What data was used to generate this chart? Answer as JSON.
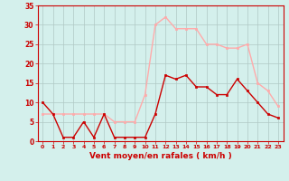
{
  "x": [
    0,
    1,
    2,
    3,
    4,
    5,
    6,
    7,
    8,
    9,
    10,
    11,
    12,
    13,
    14,
    15,
    16,
    17,
    18,
    19,
    20,
    21,
    22,
    23
  ],
  "vent_moyen": [
    10,
    7,
    1,
    1,
    5,
    1,
    7,
    1,
    1,
    1,
    1,
    7,
    17,
    16,
    17,
    14,
    14,
    12,
    12,
    16,
    13,
    10,
    7,
    6
  ],
  "rafales": [
    7,
    7,
    7,
    7,
    7,
    7,
    7,
    5,
    5,
    5,
    12,
    30,
    32,
    29,
    29,
    29,
    25,
    25,
    24,
    24,
    25,
    15,
    13,
    9
  ],
  "color_moyen": "#cc0000",
  "color_rafales": "#ffaaaa",
  "bg_color": "#d4f0ec",
  "grid_color": "#b0c8c4",
  "axis_color": "#cc0000",
  "xlabel": "Vent moyen/en rafales ( km/h )",
  "ylim": [
    0,
    35
  ],
  "yticks": [
    0,
    5,
    10,
    15,
    20,
    25,
    30,
    35
  ],
  "xticks": [
    0,
    1,
    2,
    3,
    4,
    5,
    6,
    7,
    8,
    9,
    10,
    11,
    12,
    13,
    14,
    15,
    16,
    17,
    18,
    19,
    20,
    21,
    22,
    23
  ],
  "marker_size": 2.0,
  "line_width": 1.0
}
